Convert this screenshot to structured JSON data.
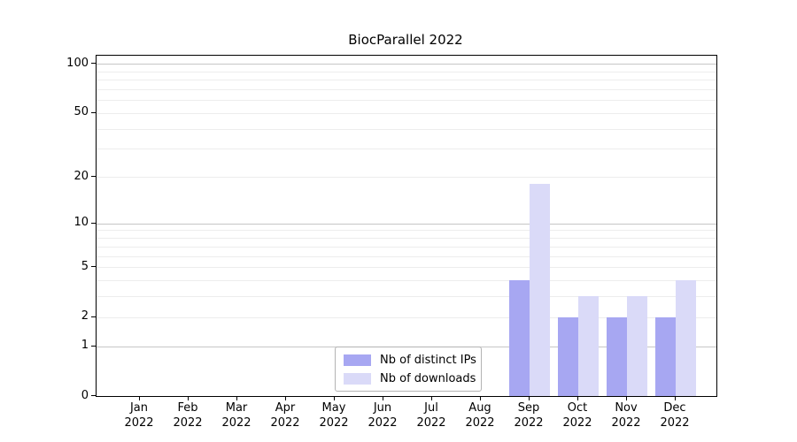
{
  "chart_data": {
    "type": "bar",
    "title": "BiocParallel 2022",
    "months": [
      "Jan",
      "Feb",
      "Mar",
      "Apr",
      "May",
      "Jun",
      "Jul",
      "Aug",
      "Sep",
      "Oct",
      "Nov",
      "Dec"
    ],
    "year_label": "2022",
    "series": [
      {
        "name": "Nb of distinct IPs",
        "color": "#a7a7f2",
        "values": [
          0,
          0,
          0,
          0,
          0,
          0,
          0,
          0,
          4,
          2,
          2,
          2
        ]
      },
      {
        "name": "Nb of downloads",
        "color": "#dadaf8",
        "values": [
          0,
          0,
          0,
          0,
          0,
          0,
          0,
          0,
          18,
          3,
          3,
          4
        ]
      }
    ],
    "y_ticks": [
      0,
      1,
      2,
      5,
      10,
      20,
      50,
      100
    ],
    "y_major_gridlines": [
      1,
      10,
      100
    ],
    "y_minor_gridlines": [
      2,
      3,
      4,
      5,
      6,
      7,
      8,
      9,
      20,
      30,
      40,
      50,
      60,
      70,
      80,
      90
    ],
    "scale": "log1p",
    "ylim": [
      0,
      100
    ],
    "grid": true,
    "legend_position": "bottom-center",
    "colors": {
      "grid_major": "#c6c6c6",
      "grid_minor": "#ededed",
      "axis": "#000000"
    }
  }
}
